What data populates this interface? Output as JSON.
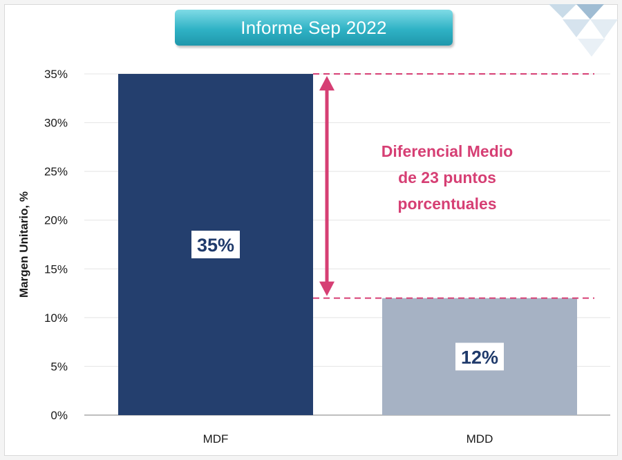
{
  "header": {
    "title": "Informe Sep 2022"
  },
  "chart_data": {
    "type": "bar",
    "categories": [
      "MDF",
      "MDD"
    ],
    "values": [
      35,
      12
    ],
    "data_labels": [
      "35%",
      "12%"
    ],
    "ylabel": "Margen Unitario, %",
    "ylim": [
      0,
      35
    ],
    "yticks": [
      0,
      5,
      10,
      15,
      20,
      25,
      30,
      35
    ],
    "ytick_labels": [
      "0%",
      "5%",
      "10%",
      "15%",
      "20%",
      "25%",
      "30%",
      "35%"
    ],
    "grid": true,
    "colors": {
      "MDF": "#243f6e",
      "MDD": "#a6b2c4",
      "annotation": "#d63f74",
      "title_banner": "#2fb2c5"
    },
    "annotation": {
      "lines": [
        "Diferencial Medio",
        "de 23 puntos",
        "porcentuales"
      ],
      "from_value": 35,
      "to_value": 12
    }
  }
}
